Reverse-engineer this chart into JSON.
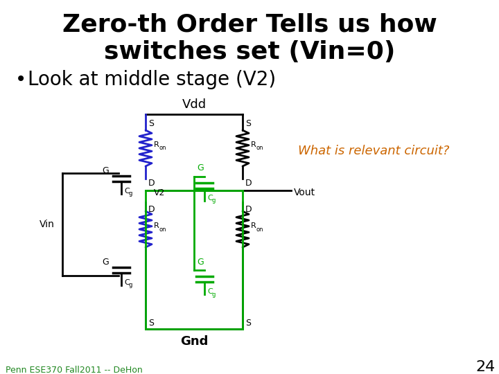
{
  "title_line1": "Zero-th Order Tells us how",
  "title_line2": "switches set (Vin=0)",
  "bullet": "Look at middle stage (V2)",
  "vdd_label": "Vdd",
  "gnd_label": "Gnd",
  "what_label": "What is relevant circuit?",
  "vin_label": "Vin",
  "vout_label": "Vout",
  "v2_label": "V2",
  "page_num": "24",
  "footer": "Penn ESE370 Fall2011 -- DeHon",
  "title_color": "#000000",
  "bullet_color": "#000000",
  "what_color": "#CC6600",
  "footer_color": "#228822",
  "blue_color": "#2222CC",
  "green_color": "#00AA00",
  "black_color": "#000000",
  "bg_color": "#FFFFFF",
  "title_fontsize": 26,
  "bullet_fontsize": 20
}
